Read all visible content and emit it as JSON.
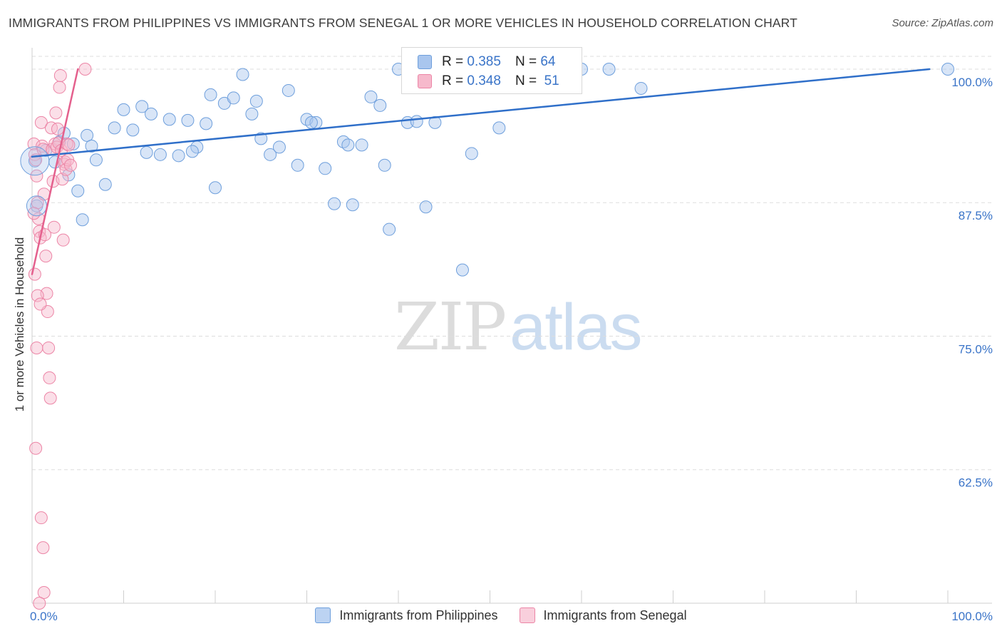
{
  "title": "IMMIGRANTS FROM PHILIPPINES VS IMMIGRANTS FROM SENEGAL 1 OR MORE VEHICLES IN HOUSEHOLD CORRELATION CHART",
  "source": "Source: ZipAtlas.com",
  "watermark": {
    "zip": "ZIP",
    "atlas": "atlas"
  },
  "legend_top": {
    "rows": [
      {
        "r_label": "R = ",
        "r_value": "0.385",
        "n_label": "N = ",
        "n_value": "64"
      },
      {
        "r_label": "R = ",
        "r_value": "0.348",
        "n_label": "N = ",
        "n_value": "51"
      }
    ]
  },
  "legend_bottom": {
    "items": [
      "Immigrants from Philippines",
      "Immigrants from Senegal"
    ]
  },
  "colors": {
    "blue_fill": "#a9c6ee",
    "blue_stroke": "#6e9fdc",
    "blue_line": "#2f6fc9",
    "pink_fill": "#f6b9cc",
    "pink_stroke": "#ec85a6",
    "pink_line": "#e4608d",
    "tick_label": "#3a74c8",
    "grid": "#dddddd"
  },
  "chart_data": {
    "type": "scatter",
    "title": "IMMIGRANTS FROM PHILIPPINES VS IMMIGRANTS FROM SENEGAL 1 OR MORE VEHICLES IN HOUSEHOLD CORRELATION CHART",
    "xlabel": "",
    "ylabel": "1 or more Vehicles in Household",
    "xlim": [
      0,
      100
    ],
    "ylim": [
      50,
      101.2
    ],
    "x_tick_labels": [
      "0.0%",
      "100.0%"
    ],
    "y_ticks": [
      62.5,
      75.0,
      87.5,
      100.0
    ],
    "y_tick_labels": [
      "62.5%",
      "75.0%",
      "87.5%",
      "100.0%"
    ],
    "grid": "horizontal-dashed",
    "legend_position": "bottom",
    "series": [
      {
        "name": "Immigrants from Philippines",
        "color": "blue",
        "R": 0.385,
        "N": 64,
        "trend": {
          "x": [
            0,
            98
          ],
          "y": [
            91.8,
            100.0
          ]
        },
        "points": [
          [
            0.3,
            91.4
          ],
          [
            0.5,
            87.2
          ],
          [
            1.5,
            92.4
          ],
          [
            2.5,
            91.3
          ],
          [
            3.0,
            93.2
          ],
          [
            3.5,
            94.0
          ],
          [
            4.0,
            90.1
          ],
          [
            4.5,
            93.0
          ],
          [
            5.0,
            88.6
          ],
          [
            5.5,
            85.9
          ],
          [
            6.0,
            93.8
          ],
          [
            6.5,
            92.8
          ],
          [
            7.0,
            91.5
          ],
          [
            8.0,
            89.2
          ],
          [
            9.0,
            94.5
          ],
          [
            10.0,
            96.2
          ],
          [
            11.0,
            94.3
          ],
          [
            12.0,
            96.5
          ],
          [
            13.0,
            95.8
          ],
          [
            14.0,
            92.0
          ],
          [
            15.0,
            95.3
          ],
          [
            16.0,
            91.9
          ],
          [
            17.0,
            95.2
          ],
          [
            18.0,
            92.7
          ],
          [
            19.0,
            94.9
          ],
          [
            19.5,
            97.6
          ],
          [
            20.0,
            88.9
          ],
          [
            21.0,
            96.8
          ],
          [
            22.0,
            97.3
          ],
          [
            23.0,
            99.5
          ],
          [
            24.0,
            95.8
          ],
          [
            25.0,
            93.5
          ],
          [
            26.0,
            92.0
          ],
          [
            27.0,
            92.7
          ],
          [
            28.0,
            98.0
          ],
          [
            29.0,
            91.0
          ],
          [
            30.0,
            95.3
          ],
          [
            31.0,
            95.0
          ],
          [
            32.0,
            90.7
          ],
          [
            33.0,
            87.4
          ],
          [
            34.0,
            93.2
          ],
          [
            35.0,
            87.3
          ],
          [
            36.0,
            92.9
          ],
          [
            37.0,
            97.4
          ],
          [
            38.0,
            96.6
          ],
          [
            38.5,
            91.0
          ],
          [
            39.0,
            85.0
          ],
          [
            40.0,
            100.0
          ],
          [
            41.0,
            95.0
          ],
          [
            42.0,
            95.1
          ],
          [
            43.0,
            87.1
          ],
          [
            44.0,
            95.0
          ],
          [
            47.0,
            81.2
          ],
          [
            48.0,
            92.1
          ],
          [
            17.5,
            92.3
          ],
          [
            34.5,
            92.9
          ],
          [
            30.5,
            95.0
          ],
          [
            24.5,
            97.0
          ],
          [
            51.0,
            94.5
          ],
          [
            60.0,
            100.0
          ],
          [
            63.0,
            100.0
          ],
          [
            66.5,
            98.2
          ],
          [
            100.0,
            100.0
          ],
          [
            12.5,
            92.2
          ]
        ]
      },
      {
        "name": "Immigrants from Senegal",
        "color": "pink",
        "R": 0.348,
        "N": 51,
        "trend": {
          "x": [
            0,
            5.0
          ],
          "y": [
            80.8,
            100.0
          ]
        },
        "points": [
          [
            0.2,
            93.0
          ],
          [
            0.3,
            92.0
          ],
          [
            0.4,
            91.5
          ],
          [
            0.5,
            90.0
          ],
          [
            0.6,
            87.5
          ],
          [
            0.7,
            86.0
          ],
          [
            0.8,
            84.8
          ],
          [
            0.9,
            84.2
          ],
          [
            1.0,
            95.0
          ],
          [
            1.1,
            92.8
          ],
          [
            1.2,
            92.5
          ],
          [
            1.3,
            88.3
          ],
          [
            1.4,
            84.5
          ],
          [
            1.5,
            82.5
          ],
          [
            1.6,
            79.0
          ],
          [
            1.7,
            77.3
          ],
          [
            1.8,
            73.9
          ],
          [
            1.9,
            71.1
          ],
          [
            2.0,
            69.2
          ],
          [
            2.1,
            94.5
          ],
          [
            2.2,
            92.5
          ],
          [
            2.3,
            89.5
          ],
          [
            2.4,
            85.2
          ],
          [
            2.5,
            93.0
          ],
          [
            2.6,
            95.9
          ],
          [
            2.7,
            92.7
          ],
          [
            2.8,
            94.4
          ],
          [
            2.9,
            93.1
          ],
          [
            3.0,
            98.3
          ],
          [
            3.1,
            99.4
          ],
          [
            3.2,
            92.4
          ],
          [
            3.3,
            89.7
          ],
          [
            3.4,
            84.0
          ],
          [
            3.5,
            91.1
          ],
          [
            3.6,
            91.3
          ],
          [
            3.7,
            90.6
          ],
          [
            3.8,
            93.0
          ],
          [
            3.9,
            91.5
          ],
          [
            4.0,
            92.9
          ],
          [
            4.2,
            91.0
          ],
          [
            5.8,
            100.0
          ],
          [
            0.3,
            80.8
          ],
          [
            0.4,
            64.5
          ],
          [
            0.5,
            73.9
          ],
          [
            0.6,
            78.8
          ],
          [
            1.0,
            58.0
          ],
          [
            1.2,
            55.2
          ],
          [
            1.3,
            51.0
          ],
          [
            0.8,
            50.0
          ],
          [
            0.2,
            86.5
          ],
          [
            0.9,
            78.0
          ]
        ]
      }
    ]
  }
}
